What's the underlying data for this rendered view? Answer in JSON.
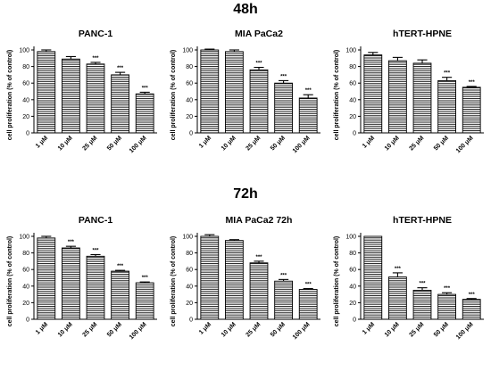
{
  "sections": [
    {
      "label": "48h"
    },
    {
      "label": "72h"
    }
  ],
  "chart_data": [
    {
      "type": "bar",
      "title": "PANC-1",
      "section": "48h",
      "categories": [
        "1 μM",
        "10 μM",
        "25 μM",
        "50 μM",
        "100 μM"
      ],
      "values": [
        98,
        89,
        83,
        70,
        47
      ],
      "errors": [
        2,
        3,
        2,
        3,
        2
      ],
      "annotations": [
        "",
        "",
        "***",
        "***",
        "***"
      ],
      "ylabel": "cell proliferation (% of control)",
      "ylim": [
        0,
        100
      ],
      "yticks": [
        0,
        20,
        40,
        60,
        80,
        100
      ],
      "bar_pattern": "horizontal-lines"
    },
    {
      "type": "bar",
      "title": "MIA PaCa2",
      "section": "48h",
      "categories": [
        "1 μM",
        "10 μM",
        "25 μM",
        "50 μM",
        "100 μM"
      ],
      "values": [
        100,
        98,
        76,
        60,
        42
      ],
      "errors": [
        1,
        2,
        3,
        3,
        4
      ],
      "annotations": [
        "",
        "",
        "***",
        "***",
        "***"
      ],
      "ylabel": "cell proliferation (% of control)",
      "ylim": [
        0,
        100
      ],
      "yticks": [
        0,
        20,
        40,
        60,
        80,
        100
      ],
      "bar_pattern": "horizontal-lines"
    },
    {
      "type": "bar",
      "title": "hTERT-HPNE",
      "section": "48h",
      "categories": [
        "1 μM",
        "10 μM",
        "25 μM",
        "50 μM",
        "100 μM"
      ],
      "values": [
        94,
        87,
        84,
        63,
        55
      ],
      "errors": [
        3,
        4,
        4,
        4,
        1
      ],
      "annotations": [
        "",
        "",
        "",
        "***",
        "***"
      ],
      "ylabel": "cell proliferation (% of control)",
      "ylim": [
        0,
        100
      ],
      "yticks": [
        0,
        20,
        40,
        60,
        80,
        100
      ],
      "bar_pattern": "horizontal-lines"
    },
    {
      "type": "bar",
      "title": "PANC-1",
      "section": "72h",
      "categories": [
        "1 μM",
        "10 μM",
        "25 μM",
        "50 μM",
        "100 μM"
      ],
      "values": [
        98,
        86,
        76,
        58,
        44
      ],
      "errors": [
        2,
        2,
        2,
        1,
        1
      ],
      "annotations": [
        "",
        "***",
        "***",
        "***",
        "***"
      ],
      "ylabel": "cell proliferation (% of control)",
      "ylim": [
        0,
        100
      ],
      "yticks": [
        0,
        20,
        40,
        60,
        80,
        100
      ],
      "bar_pattern": "horizontal-lines"
    },
    {
      "type": "bar",
      "title": "MIA PaCa2 72h",
      "section": "72h",
      "categories": [
        "1 μM",
        "10 μM",
        "25 μM",
        "50 μM",
        "100 μM"
      ],
      "values": [
        100,
        95,
        68,
        46,
        36
      ],
      "errors": [
        2,
        1,
        2,
        2,
        1
      ],
      "annotations": [
        "",
        "",
        "***",
        "***",
        "***"
      ],
      "ylabel": "cell proliferation (% of control)",
      "ylim": [
        0,
        100
      ],
      "yticks": [
        0,
        20,
        40,
        60,
        80,
        100
      ],
      "bar_pattern": "horizontal-lines"
    },
    {
      "type": "bar",
      "title": "hTERT-HPNE",
      "section": "72h",
      "categories": [
        "1 μM",
        "10 μM",
        "25 μM",
        "50 μM",
        "100 μM"
      ],
      "values": [
        100,
        51,
        35,
        30,
        24
      ],
      "errors": [
        0,
        5,
        3,
        2,
        1
      ],
      "annotations": [
        "",
        "***",
        "***",
        "***",
        "***"
      ],
      "ylabel": "cell proliferation (% of control)",
      "ylim": [
        0,
        100
      ],
      "yticks": [
        0,
        20,
        40,
        60,
        80,
        100
      ],
      "bar_pattern": "horizontal-lines"
    }
  ]
}
